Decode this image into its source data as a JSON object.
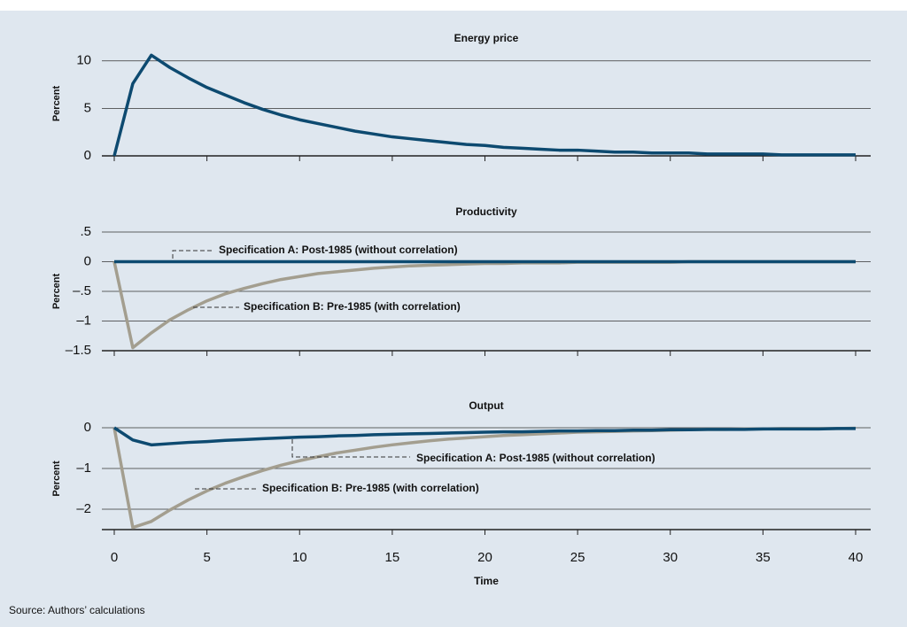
{
  "chart_data": [
    {
      "type": "line",
      "title": "Energy price",
      "ylabel": "Percent",
      "x": [
        0,
        1,
        2,
        3,
        4,
        5,
        6,
        7,
        8,
        9,
        10,
        11,
        12,
        13,
        14,
        15,
        16,
        17,
        18,
        19,
        20,
        21,
        22,
        23,
        24,
        25,
        26,
        27,
        28,
        29,
        30,
        31,
        32,
        33,
        34,
        35,
        36,
        37,
        38,
        39,
        40
      ],
      "series": [
        {
          "color": "#0d4a70",
          "values": [
            0,
            7.6,
            10.6,
            9.3,
            8.2,
            7.2,
            6.4,
            5.6,
            4.9,
            4.3,
            3.8,
            3.4,
            3.0,
            2.6,
            2.3,
            2.0,
            1.8,
            1.6,
            1.4,
            1.2,
            1.1,
            0.9,
            0.8,
            0.7,
            0.6,
            0.6,
            0.5,
            0.4,
            0.4,
            0.3,
            0.3,
            0.3,
            0.2,
            0.2,
            0.2,
            0.2,
            0.1,
            0.1,
            0.1,
            0.1,
            0.1
          ]
        }
      ],
      "xlim": [
        0,
        40
      ],
      "xticks": [
        0,
        5,
        10,
        15,
        20,
        25,
        30,
        35,
        40
      ],
      "ylim": [
        0,
        11
      ],
      "yticks": [
        0,
        5,
        10
      ],
      "grid": true
    },
    {
      "type": "line",
      "title": "Productivity",
      "ylabel": "Percent",
      "x": [
        0,
        1,
        2,
        3,
        4,
        5,
        6,
        7,
        8,
        9,
        10,
        11,
        12,
        13,
        14,
        15,
        16,
        17,
        18,
        19,
        20,
        21,
        22,
        23,
        24,
        25,
        26,
        27,
        28,
        29,
        30,
        31,
        32,
        33,
        34,
        35,
        36,
        37,
        38,
        39,
        40
      ],
      "series": [
        {
          "name": "Specification A: Post-1985 (without correlation)",
          "color": "#0d4a70",
          "values": [
            0,
            0,
            0,
            0,
            0,
            0,
            0,
            0,
            0,
            0,
            0,
            0,
            0,
            0,
            0,
            0,
            0,
            0,
            0,
            0,
            0,
            0,
            0,
            0,
            0,
            0,
            0,
            0,
            0,
            0,
            0,
            0,
            0,
            0,
            0,
            0,
            0,
            0,
            0,
            0,
            0
          ]
        },
        {
          "name": "Specification B: Pre-1985 (with correlation)",
          "color": "#a39e8f",
          "values": [
            0,
            -1.45,
            -1.2,
            -0.98,
            -0.81,
            -0.66,
            -0.54,
            -0.45,
            -0.37,
            -0.3,
            -0.25,
            -0.2,
            -0.17,
            -0.14,
            -0.11,
            -0.09,
            -0.07,
            -0.06,
            -0.05,
            -0.04,
            -0.03,
            -0.03,
            -0.02,
            -0.02,
            -0.02,
            -0.01,
            -0.01,
            -0.01,
            -0.01,
            -0.01,
            -0.01,
            0,
            0,
            0,
            0,
            0,
            0,
            0,
            0,
            0,
            0
          ]
        }
      ],
      "xlim": [
        0,
        40
      ],
      "xticks": [
        0,
        5,
        10,
        15,
        20,
        25,
        30,
        35,
        40
      ],
      "ylim": [
        -1.5,
        0.5
      ],
      "yticks": [
        {
          "value": 0.5,
          "label": ".5"
        },
        0,
        {
          "value": -0.5,
          "label": "–.5"
        },
        {
          "value": -1,
          "label": "–1"
        },
        {
          "value": -1.5,
          "label": "–1.5"
        }
      ],
      "grid": true
    },
    {
      "type": "line",
      "title": "Output",
      "ylabel": "Percent",
      "xlabel": "Time",
      "x": [
        0,
        1,
        2,
        3,
        4,
        5,
        6,
        7,
        8,
        9,
        10,
        11,
        12,
        13,
        14,
        15,
        16,
        17,
        18,
        19,
        20,
        21,
        22,
        23,
        24,
        25,
        26,
        27,
        28,
        29,
        30,
        31,
        32,
        33,
        34,
        35,
        36,
        37,
        38,
        39,
        40
      ],
      "series": [
        {
          "name": "Specification A: Post-1985 (without correlation)",
          "color": "#0d4a70",
          "values": [
            0,
            -0.3,
            -0.42,
            -0.39,
            -0.36,
            -0.34,
            -0.31,
            -0.29,
            -0.27,
            -0.25,
            -0.23,
            -0.22,
            -0.2,
            -0.19,
            -0.17,
            -0.16,
            -0.15,
            -0.14,
            -0.13,
            -0.12,
            -0.11,
            -0.1,
            -0.1,
            -0.09,
            -0.08,
            -0.08,
            -0.07,
            -0.07,
            -0.06,
            -0.06,
            -0.05,
            -0.05,
            -0.04,
            -0.04,
            -0.04,
            -0.03,
            -0.03,
            -0.03,
            -0.03,
            -0.02,
            -0.02
          ]
        },
        {
          "name": "Specification B: Pre-1985 (with correlation)",
          "color": "#a39e8f",
          "values": [
            0,
            -2.45,
            -2.3,
            -2.02,
            -1.77,
            -1.55,
            -1.36,
            -1.2,
            -1.05,
            -0.92,
            -0.81,
            -0.71,
            -0.62,
            -0.55,
            -0.48,
            -0.42,
            -0.37,
            -0.32,
            -0.28,
            -0.25,
            -0.22,
            -0.19,
            -0.17,
            -0.15,
            -0.13,
            -0.11,
            -0.1,
            -0.09,
            -0.08,
            -0.07,
            -0.06,
            -0.05,
            -0.04,
            -0.04,
            -0.03,
            -0.03,
            -0.02,
            -0.02,
            -0.02,
            -0.02,
            -0.01
          ]
        }
      ],
      "xlim": [
        0,
        40
      ],
      "xticks": [
        0,
        5,
        10,
        15,
        20,
        25,
        30,
        35,
        40
      ],
      "ylim": [
        -2.5,
        0
      ],
      "yticks": [
        0,
        {
          "value": -1,
          "label": "–1"
        },
        {
          "value": -2,
          "label": "–2"
        }
      ],
      "grid": true
    }
  ],
  "source": "Source: Authors’ calculations"
}
